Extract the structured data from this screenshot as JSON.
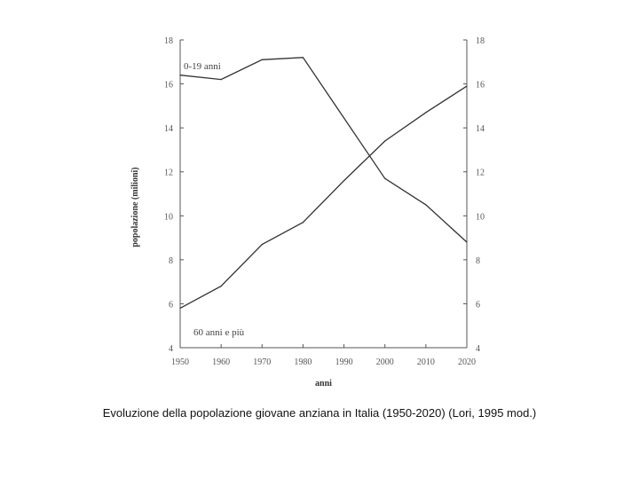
{
  "caption": "Evoluzione della popolazione giovane anziana in Italia (1950-2020) (Lori, 1995 mod.)",
  "chart_data": {
    "type": "line",
    "xlabel": "anni",
    "ylabel": "popolazione (milioni)",
    "xlim": [
      1950,
      2020
    ],
    "ylim": [
      4,
      18
    ],
    "x_ticks": [
      "1950",
      "1960",
      "1970",
      "1980",
      "1990",
      "2000",
      "2010",
      "2020"
    ],
    "y_ticks": [
      "4",
      "6",
      "8",
      "10",
      "12",
      "14",
      "16",
      "18"
    ],
    "series": [
      {
        "name": "0-19 anni",
        "x": [
          1950,
          1960,
          1970,
          1980,
          2000,
          2010,
          2020
        ],
        "values": [
          16.4,
          16.2,
          17.1,
          17.2,
          11.7,
          10.5,
          8.8
        ]
      },
      {
        "name": "60 anni e più",
        "x": [
          1950,
          1960,
          1970,
          1980,
          1990,
          2000,
          2010,
          2020
        ],
        "values": [
          5.8,
          6.8,
          8.7,
          9.7,
          11.6,
          13.4,
          14.7,
          15.9
        ]
      }
    ],
    "grid": false,
    "secondary_y_axis": true
  }
}
